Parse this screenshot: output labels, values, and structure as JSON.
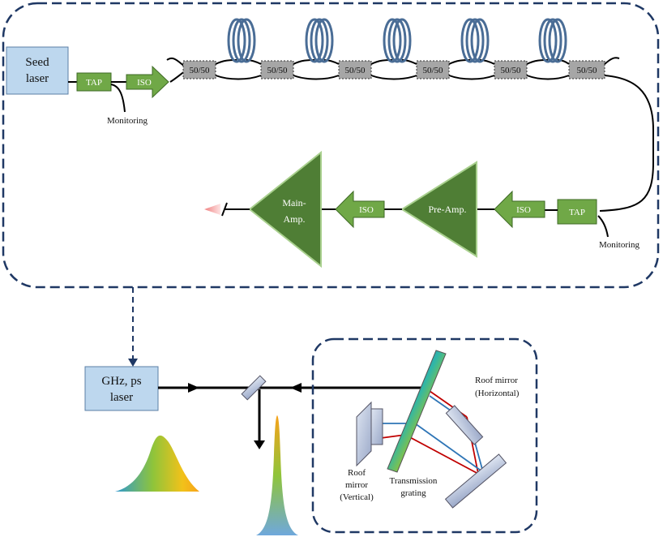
{
  "seed_laser": {
    "line1": "Seed",
    "line2": "laser"
  },
  "tap_label": "TAP",
  "iso_label": "ISO",
  "splitter_label": "50/50",
  "monitoring_label": "Monitoring",
  "pre_amp_label": "Pre-Amp.",
  "main_amp": {
    "line1": "Main-",
    "line2": "Amp."
  },
  "ghz_laser": {
    "line1": "GHz, ps",
    "line2": "laser"
  },
  "roof_mirror_horizontal": {
    "line1": "Roof mirror",
    "line2": "(Horizontal)"
  },
  "roof_mirror_vertical": {
    "line1": "Roof",
    "line2": "mirror",
    "line3": "(Vertical)"
  },
  "transmission_grating": {
    "line1": "Transmission",
    "line2": "grating"
  },
  "colors": {
    "green_component": "#70a847",
    "green_amp": "#4f7e35",
    "gray_splitter": "#a6a6a6",
    "blue_box": "#bdd7ee",
    "coil": "#4a6d96",
    "frame": "#1f3864"
  }
}
